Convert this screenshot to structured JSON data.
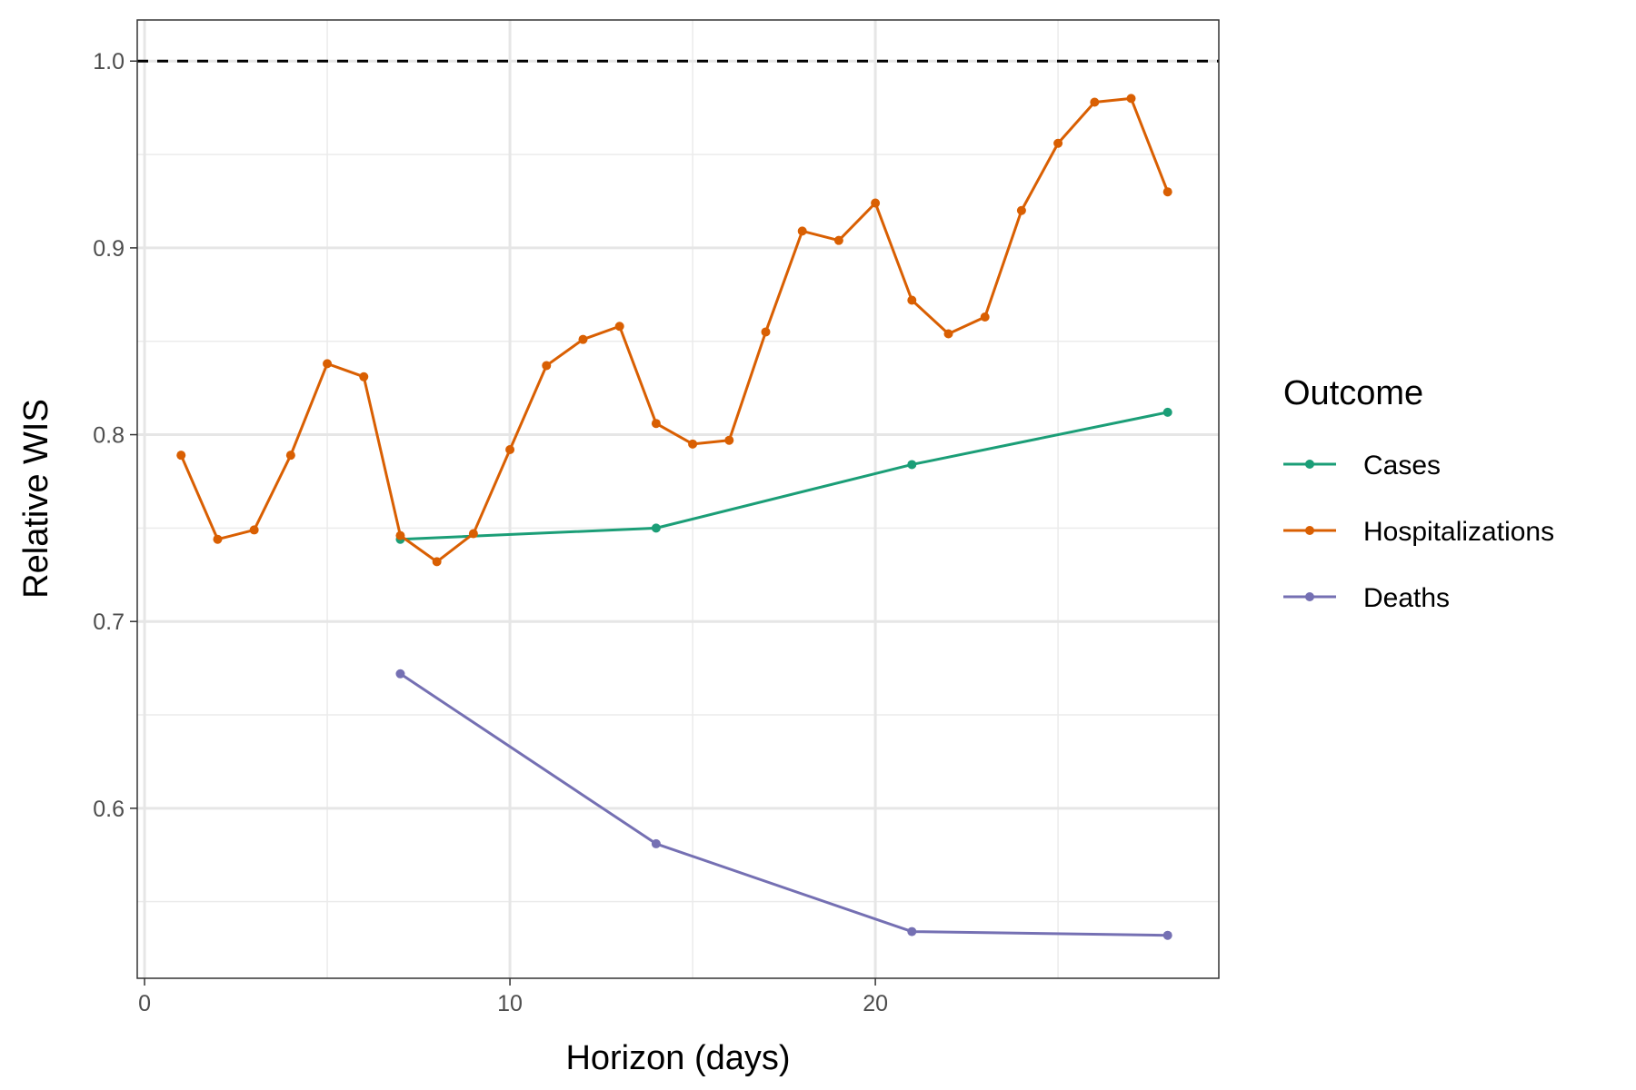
{
  "chart_data": {
    "type": "line",
    "title": "",
    "xlabel": "Horizon (days)",
    "ylabel": "Relative WIS",
    "xlim": [
      -0.2,
      29.4
    ],
    "ylim": [
      0.509,
      1.022
    ],
    "x_ticks": [
      0,
      10,
      20
    ],
    "x_minor_ticks": [
      5,
      15,
      25
    ],
    "y_ticks": [
      0.6,
      0.7,
      0.8,
      0.9,
      1.0
    ],
    "y_minor_ticks": [
      0.55,
      0.65,
      0.75,
      0.85,
      0.95
    ],
    "x_tick_labels": [
      "0",
      "10",
      "20"
    ],
    "y_tick_labels": [
      "0.6",
      "0.7",
      "0.8",
      "0.9",
      "1.0"
    ],
    "grid": true,
    "reference_line": {
      "y": 1.0,
      "style": "dashed",
      "color": "#000000"
    },
    "legend": {
      "title": "Outcome",
      "position": "right"
    },
    "series": [
      {
        "name": "Cases",
        "color": "#1b9e77",
        "x": [
          7,
          14,
          21,
          28
        ],
        "y": [
          0.744,
          0.75,
          0.784,
          0.812
        ]
      },
      {
        "name": "Hospitalizations",
        "color": "#d95f02",
        "x": [
          1,
          2,
          3,
          4,
          5,
          6,
          7,
          8,
          9,
          10,
          11,
          12,
          13,
          14,
          15,
          16,
          17,
          18,
          19,
          20,
          21,
          22,
          23,
          24,
          25,
          26,
          27,
          28
        ],
        "y": [
          0.789,
          0.744,
          0.749,
          0.789,
          0.838,
          0.831,
          0.746,
          0.732,
          0.747,
          0.792,
          0.837,
          0.851,
          0.858,
          0.806,
          0.795,
          0.797,
          0.855,
          0.909,
          0.904,
          0.924,
          0.872,
          0.854,
          0.863,
          0.92,
          0.956,
          0.978,
          0.98,
          0.93
        ]
      },
      {
        "name": "Deaths",
        "color": "#7570b3",
        "x": [
          7,
          14,
          21,
          28
        ],
        "y": [
          0.672,
          0.581,
          0.534,
          0.532
        ]
      }
    ]
  }
}
